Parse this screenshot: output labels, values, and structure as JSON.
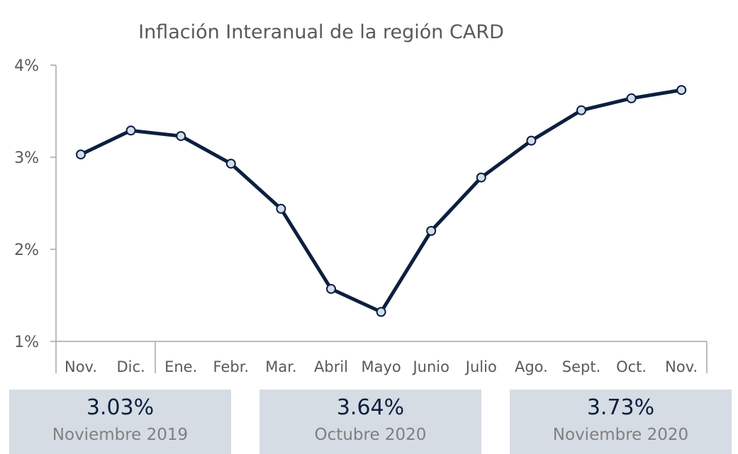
{
  "chart_data": {
    "type": "line",
    "title": "Inflación Interanual de la región CARD",
    "xlabel": "",
    "ylabel": "",
    "categories": [
      "Nov.",
      "Dic.",
      "Ene.",
      "Febr.",
      "Mar.",
      "Abril",
      "Mayo",
      "Junio",
      "Julio",
      "Ago.",
      "Sept.",
      "Oct.",
      "Nov."
    ],
    "series": [
      {
        "values": [
          3.03,
          3.29,
          3.23,
          2.93,
          2.44,
          1.57,
          1.32,
          2.2,
          2.78,
          3.18,
          3.51,
          3.64,
          3.73
        ]
      }
    ],
    "y_ticks": [
      "1%",
      "2%",
      "3%",
      "4%"
    ],
    "ylim": [
      1,
      4
    ],
    "grid": false,
    "legend": "none",
    "line_color": "#0c1f3f",
    "marker_fill": "#d3ddec"
  },
  "cards": [
    {
      "value": "3.03%",
      "label": "Noviembre 2019"
    },
    {
      "value": "3.64%",
      "label": "Octubre 2020"
    },
    {
      "value": "3.73%",
      "label": "Noviembre 2020"
    }
  ]
}
